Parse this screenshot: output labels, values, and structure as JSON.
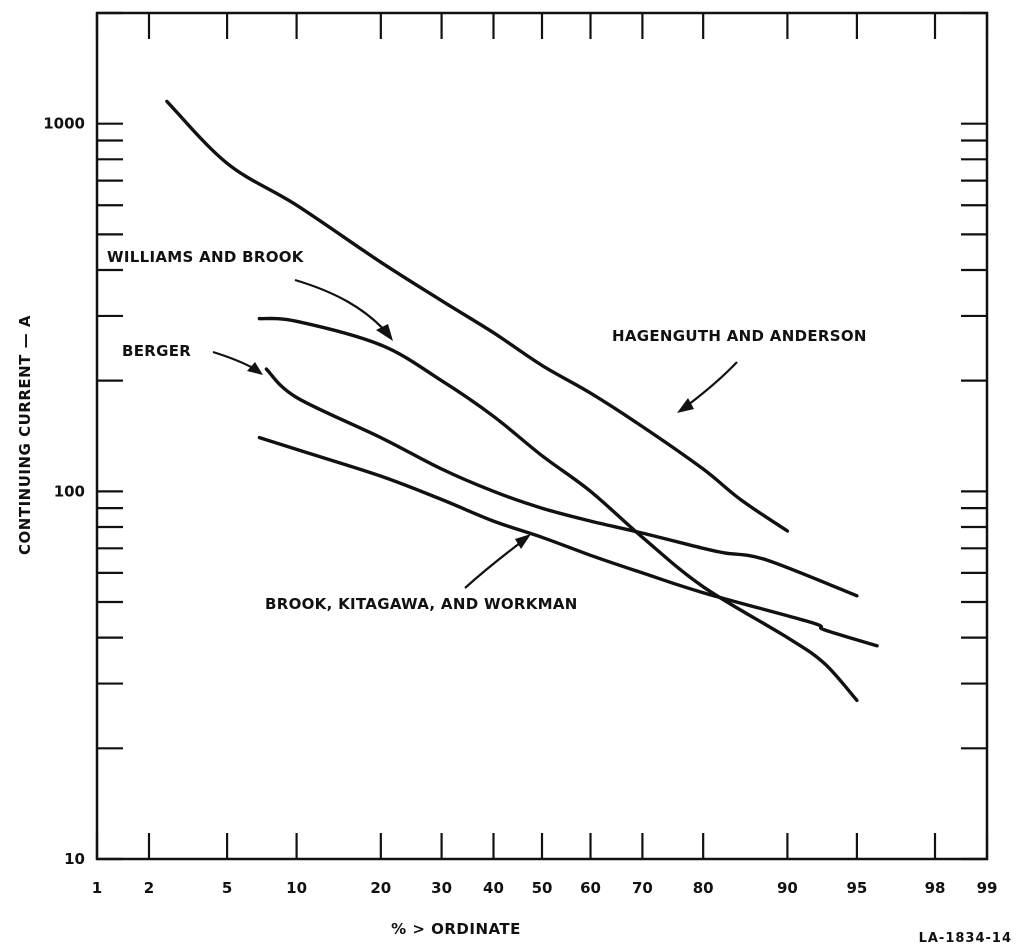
{
  "chart_data": {
    "type": "line",
    "title": "",
    "xlabel": "% > ORDINATE",
    "ylabel": "CONTINUING CURRENT — A",
    "x_scale": "probability",
    "y_scale": "log",
    "xlim": [
      1,
      99
    ],
    "ylim": [
      10,
      2000
    ],
    "x_ticks": [
      1,
      2,
      5,
      10,
      20,
      30,
      40,
      50,
      60,
      70,
      80,
      90,
      95,
      98,
      99
    ],
    "x_tick_labels": [
      "1",
      "2",
      "5",
      "10",
      "20",
      "30",
      "40",
      "50",
      "60",
      "70",
      "80",
      "90",
      "95",
      "98",
      "99"
    ],
    "y_ticks": [
      10,
      100,
      1000
    ],
    "y_tick_labels": [
      "10",
      "100",
      "1000"
    ],
    "grid": false,
    "series": [
      {
        "name": "HAGENGUTH AND ANDERSON",
        "x": [
          2.5,
          5,
          10,
          20,
          30,
          40,
          50,
          60,
          70,
          80,
          85,
          90
        ],
        "y": [
          1150,
          780,
          600,
          420,
          330,
          270,
          220,
          185,
          150,
          115,
          95,
          78
        ]
      },
      {
        "name": "WILLIAMS AND BROOK",
        "x": [
          7,
          10,
          20,
          30,
          40,
          50,
          60,
          70,
          80,
          90,
          93,
          95
        ],
        "y": [
          295,
          290,
          250,
          200,
          160,
          125,
          100,
          75,
          55,
          40,
          34,
          27
        ]
      },
      {
        "name": "BERGER",
        "x": [
          7.5,
          10,
          20,
          30,
          40,
          50,
          60,
          70,
          80,
          83,
          88,
          95
        ],
        "y": [
          215,
          180,
          140,
          115,
          100,
          90,
          83,
          77,
          70,
          68,
          65,
          52
        ]
      },
      {
        "name": "BROOK, KITAGAWA, AND WORKMAN",
        "x": [
          7,
          10,
          20,
          30,
          40,
          50,
          60,
          70,
          80,
          92,
          93,
          96
        ],
        "y": [
          140,
          130,
          110,
          95,
          83,
          75,
          67,
          60,
          53,
          44,
          42,
          38
        ]
      }
    ],
    "annotations": [
      "WILLIAMS AND BROOK",
      "BERGER",
      "HAGENGUTH AND ANDERSON",
      "BROOK, KITAGAWA, AND WORKMAN"
    ],
    "figure_id": "LA-1834-14"
  }
}
